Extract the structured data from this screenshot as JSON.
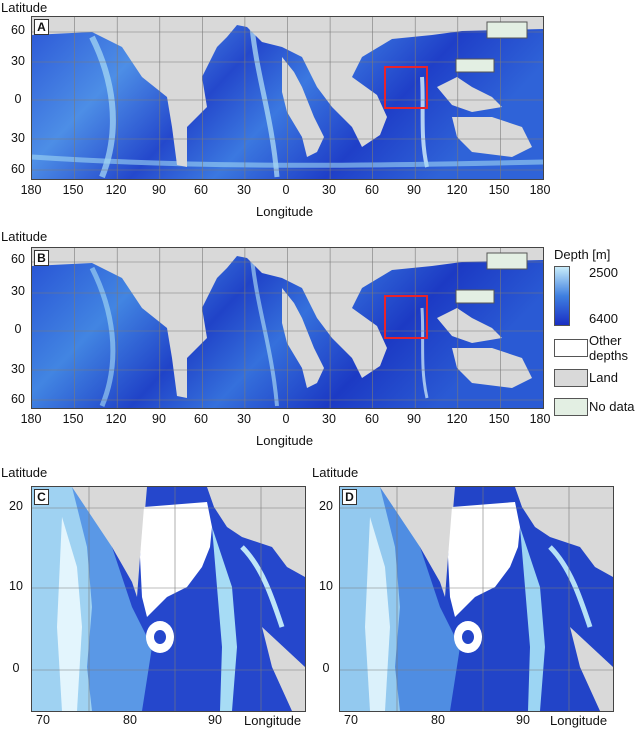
{
  "panels": {
    "A": {
      "letter": "A"
    },
    "B": {
      "letter": "B"
    },
    "C": {
      "letter": "C"
    },
    "D": {
      "letter": "D"
    }
  },
  "global_axes": {
    "y_label": "Latitude",
    "x_label": "Longitude",
    "lat_ticks": [
      "60",
      "30",
      "0",
      "30",
      "60"
    ],
    "lon_ticks": [
      "180",
      "150",
      "120",
      "90",
      "60",
      "30",
      "0",
      "30",
      "60",
      "90",
      "120",
      "150",
      "180"
    ]
  },
  "zoom_axes": {
    "y_label": "Latitude",
    "x_label": "Longitude",
    "lat_ticks": [
      "20",
      "10",
      "0"
    ],
    "lon_ticks": [
      "70",
      "80",
      "90"
    ]
  },
  "legend": {
    "title": "Depth [m]",
    "gradient_top": "2500",
    "gradient_bottom": "6400",
    "other": "Other depths",
    "other_line1": "Other",
    "other_line2": "depths",
    "land": "Land",
    "nodata": "No data"
  },
  "colors": {
    "deep": "#1a2fc4",
    "mid": "#3f7fe0",
    "shallow": "#c8ecfa",
    "land": "#d9d9d9",
    "nodata": "#e3efe3",
    "box": "#e8232a",
    "grid": "#7a7a7a"
  }
}
